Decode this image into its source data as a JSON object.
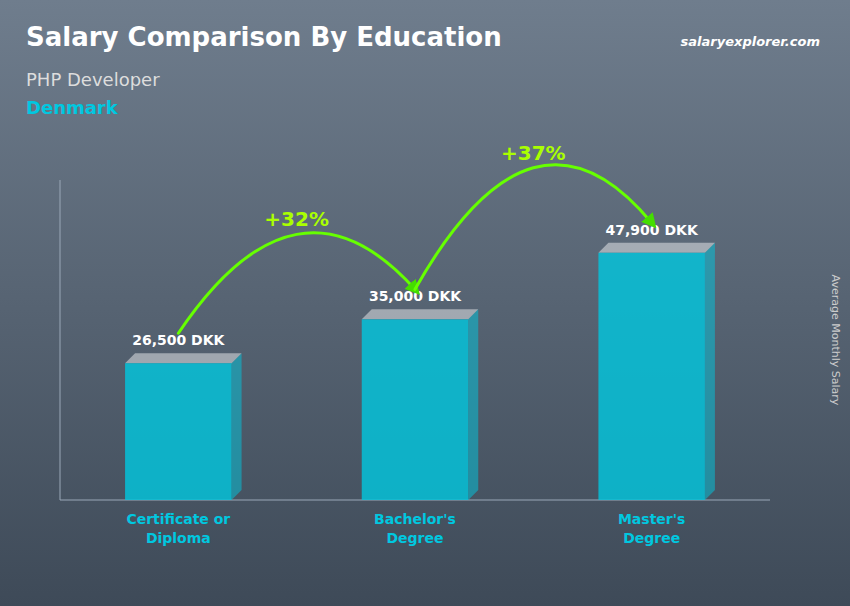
{
  "chart_data": {
    "type": "bar",
    "title": "Salary Comparison By Education",
    "subtitle": "PHP Developer",
    "country": "Denmark",
    "source": "salaryexplorer.com",
    "ylabel": "Average Monthly Salary",
    "categories": [
      "Certificate or\nDiploma",
      "Bachelor's\nDegree",
      "Master's\nDegree"
    ],
    "values": [
      26500,
      35000,
      47900
    ],
    "value_labels": [
      "26,500 DKK",
      "35,000 DKK",
      "47,900 DKK"
    ],
    "annotations": [
      "+32%",
      "+37%"
    ],
    "color": "#00c8e0",
    "ylim": [
      0,
      62000
    ],
    "data_labels": true,
    "tick_labels": false,
    "grid": false
  }
}
